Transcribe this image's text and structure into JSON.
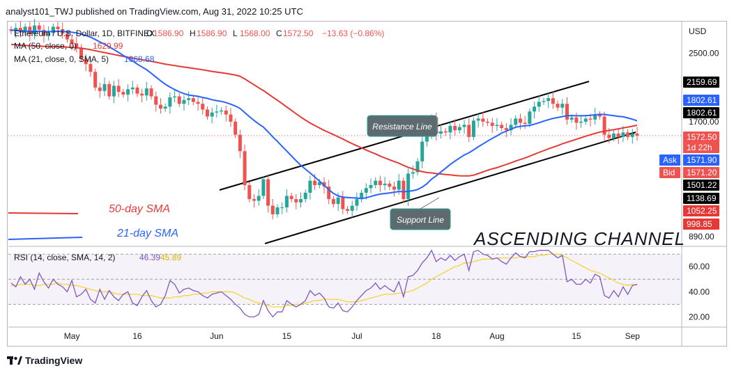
{
  "header": {
    "publisher_text": "analyst101_TWJ published on TradingView.com, Aug 31, 2022 10:25 UTC"
  },
  "footer": {
    "brand": "TradingView"
  },
  "colors": {
    "up": "#26a69a",
    "down": "#ef5350",
    "ma50": "#e53935",
    "ma21": "#2962ff",
    "rsi": "#7e57c2",
    "rsi_ma": "#f5d33a",
    "channel": "#000000"
  },
  "chart_data": [
    {
      "type": "candlestick",
      "title": "Ethereum / U.S. Dollar, 1D, BITFINEX",
      "ohlc_legend": {
        "O": "1586.90",
        "H": "1586.90",
        "L": "1568.00",
        "C": "1572.50",
        "change": "−13.63 (−0.86%)"
      },
      "ma_legend": [
        {
          "label": "MA (50, close, 0)",
          "value": "1629.99",
          "color": "#e53935"
        },
        {
          "label": "MA (21, close, 0, SMA, 5)",
          "value": "1668.68",
          "color": "#2962ff"
        }
      ],
      "price_axis": {
        "currency": "USD",
        "ticks": [
          "2500.00",
          "1700.00",
          "890.00"
        ],
        "ylim": [
          850,
          2950
        ],
        "scale": "log"
      },
      "x_ticks": [
        "May",
        "16",
        "Jun",
        "15",
        "Jul",
        "18",
        "Aug",
        "15",
        "Sep"
      ],
      "price_tags": [
        {
          "text": "2159.69",
          "bg": "#000000",
          "fg": "#ffffff"
        },
        {
          "text": "1802.61",
          "bg": "#2962ff",
          "fg": "#ffffff"
        },
        {
          "text": "1802.61",
          "bg": "#000000",
          "fg": "#ffffff"
        },
        {
          "text": "1572.50",
          "bg": "#ef5350",
          "fg": "#ffffff"
        },
        {
          "text": "1d 22h",
          "bg": "#ef5350",
          "fg": "#ffffff"
        },
        {
          "text": "Ask",
          "bg": "#2962ff",
          "fg": "#ffffff"
        },
        {
          "text": "1571.90",
          "bg": "#2962ff",
          "fg": "#ffffff"
        },
        {
          "text": "Bid",
          "bg": "#ef5350",
          "fg": "#ffffff"
        },
        {
          "text": "1571.20",
          "bg": "#ef5350",
          "fg": "#ffffff"
        },
        {
          "text": "1501.22",
          "bg": "#000000",
          "fg": "#ffffff"
        },
        {
          "text": "1138.69",
          "bg": "#000000",
          "fg": "#ffffff"
        },
        {
          "text": "1052.25",
          "bg": "#e53935",
          "fg": "#ffffff"
        },
        {
          "text": "998.85",
          "bg": "#e53935",
          "fg": "#ffffff"
        }
      ],
      "annotations": {
        "resistance": "Resistance Line",
        "support": "Support Line",
        "channel_title": "ASCENDING CHANNEL",
        "legend_50": "50-day SMA",
        "legend_21": "21-day SMA"
      },
      "closes": [
        2830,
        2880,
        2810,
        2900,
        2780,
        2920,
        2850,
        2760,
        2800,
        2900,
        2860,
        2790,
        2700,
        2640,
        2580,
        2420,
        2350,
        2250,
        2060,
        2020,
        2100,
        1960,
        2080,
        2010,
        1980,
        2040,
        2060,
        1990,
        1970,
        2050,
        1960,
        1870,
        1830,
        1850,
        1950,
        1960,
        1880,
        1920,
        1940,
        1900,
        1880,
        1820,
        1750,
        1790,
        1800,
        1810,
        1770,
        1700,
        1580,
        1440,
        1190,
        1100,
        1090,
        1120,
        1230,
        1060,
        1010,
        1050,
        1050,
        1120,
        1100,
        1080,
        1100,
        1140,
        1220,
        1190,
        1210,
        1180,
        1100,
        1070,
        1110,
        1040,
        1030,
        1060,
        1100,
        1140,
        1170,
        1190,
        1220,
        1190,
        1200,
        1180,
        1160,
        1220,
        1100,
        1270,
        1280,
        1360,
        1520,
        1570,
        1740,
        1590,
        1610,
        1600,
        1660,
        1620,
        1650,
        1670,
        1560,
        1710,
        1730,
        1700,
        1690,
        1660,
        1670,
        1640,
        1620,
        1670,
        1730,
        1690,
        1680,
        1800,
        1850,
        1900,
        1910,
        1940,
        1880,
        1840,
        1880,
        1720,
        1740,
        1690,
        1700,
        1730,
        1720,
        1770,
        1750,
        1580,
        1550,
        1590,
        1560,
        1600,
        1560,
        1590,
        1572
      ]
    },
    {
      "type": "line",
      "title": "RSI (14, close, SMA, 14, 2)",
      "values_text": [
        "46.39",
        "45.89"
      ],
      "y_ticks": [
        "60.00",
        "40.00",
        "20.00"
      ],
      "ylim": [
        13,
        74
      ],
      "bands": [
        30,
        50,
        70
      ],
      "rsi": [
        47,
        44,
        52,
        46,
        50,
        42,
        55,
        48,
        43,
        50,
        46,
        44,
        40,
        49,
        36,
        38,
        42,
        34,
        31,
        42,
        34,
        41,
        36,
        33,
        38,
        40,
        31,
        29,
        36,
        41,
        33,
        28,
        30,
        37,
        49,
        46,
        39,
        42,
        43,
        41,
        40,
        37,
        35,
        38,
        39,
        40,
        37,
        34,
        30,
        27,
        22,
        20,
        20,
        22,
        33,
        25,
        20,
        24,
        24,
        33,
        30,
        28,
        30,
        33,
        41,
        37,
        39,
        35,
        28,
        27,
        31,
        25,
        24,
        28,
        33,
        37,
        41,
        43,
        47,
        42,
        45,
        42,
        40,
        48,
        36,
        52,
        53,
        57,
        63,
        67,
        73,
        64,
        67,
        65,
        69,
        65,
        68,
        70,
        57,
        72,
        73,
        70,
        69,
        66,
        67,
        64,
        62,
        67,
        71,
        68,
        67,
        72,
        72,
        73,
        73,
        73,
        70,
        67,
        69,
        48,
        50,
        46,
        46,
        50,
        47,
        54,
        52,
        37,
        35,
        41,
        36,
        44,
        38,
        45,
        46
      ],
      "rsi_ma": [
        45,
        45,
        46,
        46,
        46,
        45,
        45,
        46,
        46,
        46,
        47,
        46,
        46,
        45,
        45,
        44,
        43,
        42,
        41,
        40,
        40,
        40,
        39,
        38,
        38,
        38,
        38,
        38,
        37,
        37,
        37,
        36,
        35,
        35,
        35,
        36,
        36,
        37,
        37,
        38,
        38,
        39,
        39,
        40,
        40,
        40,
        40,
        40,
        39,
        37,
        35,
        34,
        32,
        31,
        30,
        29,
        28,
        28,
        28,
        29,
        29,
        30,
        30,
        31,
        32,
        33,
        33,
        34,
        34,
        34,
        34,
        33,
        32,
        32,
        32,
        33,
        34,
        35,
        36,
        37,
        38,
        38,
        38,
        39,
        39,
        40,
        41,
        43,
        45,
        47,
        50,
        52,
        54,
        56,
        58,
        60,
        61,
        63,
        63,
        64,
        65,
        66,
        66,
        66,
        67,
        67,
        67,
        67,
        67,
        68,
        68,
        68,
        68,
        69,
        69,
        70,
        70,
        70,
        69,
        67,
        65,
        63,
        61,
        59,
        57,
        56,
        55,
        53,
        51,
        49,
        47,
        46,
        45,
        46,
        45
      ]
    }
  ]
}
